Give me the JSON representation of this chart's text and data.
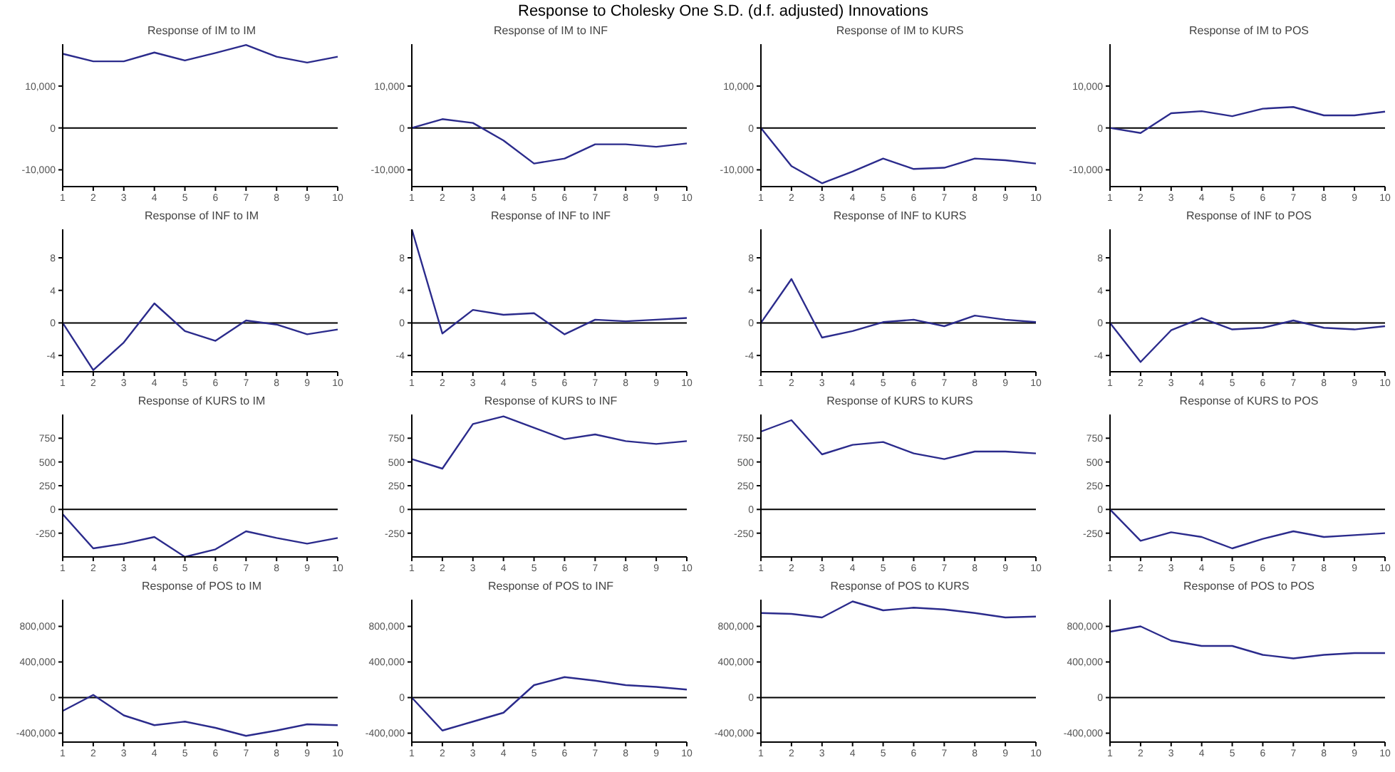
{
  "chart_data": [
    {
      "type": "line",
      "title": "Response of IM to IM",
      "annotations": [
        "Response to Cholesky One S.D. (d.f. adjusted) Innovations"
      ],
      "categories": [
        "1",
        "2",
        "3",
        "4",
        "5",
        "6",
        "7",
        "8",
        "9",
        "10"
      ],
      "values": [
        17700,
        15900,
        15900,
        18000,
        16100,
        17900,
        19800,
        17000,
        15600,
        17000
      ],
      "color": "#2b2b8c",
      "ylim": [
        -14000,
        20000
      ],
      "yticks": [
        {
          "value": -10000,
          "label": "-10,000"
        },
        0,
        {
          "value": 10000,
          "label": "10,000"
        }
      ],
      "ref_lines": [
        {
          "axis": "y",
          "value": 0,
          "color": "#000000"
        }
      ]
    },
    {
      "type": "line",
      "title": "Response of IM to INF",
      "categories": [
        "1",
        "2",
        "3",
        "4",
        "5",
        "6",
        "7",
        "8",
        "9",
        "10"
      ],
      "values": [
        0,
        2100,
        1200,
        -3000,
        -8500,
        -7300,
        -3900,
        -3900,
        -4500,
        -3700
      ],
      "color": "#2b2b8c",
      "ylim": [
        -14000,
        20000
      ],
      "yticks": [
        {
          "value": -10000,
          "label": "-10,000"
        },
        0,
        {
          "value": 10000,
          "label": "10,000"
        }
      ],
      "ref_lines": [
        {
          "axis": "y",
          "value": 0,
          "color": "#000000"
        }
      ]
    },
    {
      "type": "line",
      "title": "Response of IM to KURS",
      "categories": [
        "1",
        "2",
        "3",
        "4",
        "5",
        "6",
        "7",
        "8",
        "9",
        "10"
      ],
      "values": [
        0,
        -9100,
        -13200,
        -10400,
        -7300,
        -9800,
        -9500,
        -7300,
        -7700,
        -8500
      ],
      "color": "#2b2b8c",
      "ylim": [
        -14000,
        20000
      ],
      "yticks": [
        {
          "value": -10000,
          "label": "-10,000"
        },
        0,
        {
          "value": 10000,
          "label": "10,000"
        }
      ],
      "ref_lines": [
        {
          "axis": "y",
          "value": 0,
          "color": "#000000"
        }
      ]
    },
    {
      "type": "line",
      "title": "Response of IM to POS",
      "categories": [
        "1",
        "2",
        "3",
        "4",
        "5",
        "6",
        "7",
        "8",
        "9",
        "10"
      ],
      "values": [
        0,
        -1200,
        3500,
        4000,
        2800,
        4600,
        5000,
        3000,
        3000,
        3900
      ],
      "color": "#2b2b8c",
      "ylim": [
        -14000,
        20000
      ],
      "yticks": [
        {
          "value": -10000,
          "label": "-10,000"
        },
        0,
        {
          "value": 10000,
          "label": "10,000"
        }
      ],
      "ref_lines": [
        {
          "axis": "y",
          "value": 0,
          "color": "#000000"
        }
      ]
    },
    {
      "type": "line",
      "title": "Response of INF to IM",
      "categories": [
        "1",
        "2",
        "3",
        "4",
        "5",
        "6",
        "7",
        "8",
        "9",
        "10"
      ],
      "values": [
        0,
        -5.8,
        -2.4,
        2.4,
        -1,
        -2.2,
        0.3,
        -0.2,
        -1.4,
        -0.8
      ],
      "color": "#2b2b8c",
      "ylim": [
        -6,
        11.5
      ],
      "yticks": [
        -4,
        0,
        4,
        8
      ],
      "ref_lines": [
        {
          "axis": "y",
          "value": 0,
          "color": "#000000"
        }
      ]
    },
    {
      "type": "line",
      "title": "Response of INF to INF",
      "categories": [
        "1",
        "2",
        "3",
        "4",
        "5",
        "6",
        "7",
        "8",
        "9",
        "10"
      ],
      "values": [
        11.5,
        -1.3,
        1.6,
        1,
        1.2,
        -1.4,
        0.4,
        0.2,
        0.4,
        0.6
      ],
      "color": "#2b2b8c",
      "ylim": [
        -6,
        11.5
      ],
      "yticks": [
        -4,
        0,
        4,
        8
      ],
      "ref_lines": [
        {
          "axis": "y",
          "value": 0,
          "color": "#000000"
        }
      ]
    },
    {
      "type": "line",
      "title": "Response of INF to KURS",
      "categories": [
        "1",
        "2",
        "3",
        "4",
        "5",
        "6",
        "7",
        "8",
        "9",
        "10"
      ],
      "values": [
        0,
        5.4,
        -1.8,
        -1,
        0.1,
        0.4,
        -0.4,
        0.9,
        0.4,
        0.1
      ],
      "color": "#2b2b8c",
      "ylim": [
        -6,
        11.5
      ],
      "yticks": [
        -4,
        0,
        4,
        8
      ],
      "ref_lines": [
        {
          "axis": "y",
          "value": 0,
          "color": "#000000"
        }
      ]
    },
    {
      "type": "line",
      "title": "Response of INF to POS",
      "categories": [
        "1",
        "2",
        "3",
        "4",
        "5",
        "6",
        "7",
        "8",
        "9",
        "10"
      ],
      "values": [
        0,
        -4.8,
        -0.9,
        0.6,
        -0.8,
        -0.6,
        0.3,
        -0.6,
        -0.8,
        -0.4
      ],
      "color": "#2b2b8c",
      "ylim": [
        -6,
        11.5
      ],
      "yticks": [
        -4,
        0,
        4,
        8
      ],
      "ref_lines": [
        {
          "axis": "y",
          "value": 0,
          "color": "#000000"
        }
      ]
    },
    {
      "type": "line",
      "title": "Response of KURS to IM",
      "categories": [
        "1",
        "2",
        "3",
        "4",
        "5",
        "6",
        "7",
        "8",
        "9",
        "10"
      ],
      "values": [
        -50,
        -410,
        -360,
        -290,
        -500,
        -420,
        -230,
        -300,
        -360,
        -300
      ],
      "color": "#2b2b8c",
      "ylim": [
        -500,
        1000
      ],
      "yticks": [
        -250,
        0,
        250,
        500,
        750
      ],
      "ref_lines": [
        {
          "axis": "y",
          "value": 0,
          "color": "#000000"
        }
      ]
    },
    {
      "type": "line",
      "title": "Response of KURS to INF",
      "categories": [
        "1",
        "2",
        "3",
        "4",
        "5",
        "6",
        "7",
        "8",
        "9",
        "10"
      ],
      "values": [
        530,
        430,
        900,
        980,
        860,
        740,
        790,
        720,
        690,
        720
      ],
      "color": "#2b2b8c",
      "ylim": [
        -500,
        1000
      ],
      "yticks": [
        -250,
        0,
        250,
        500,
        750
      ],
      "ref_lines": [
        {
          "axis": "y",
          "value": 0,
          "color": "#000000"
        }
      ]
    },
    {
      "type": "line",
      "title": "Response of KURS to KURS",
      "categories": [
        "1",
        "2",
        "3",
        "4",
        "5",
        "6",
        "7",
        "8",
        "9",
        "10"
      ],
      "values": [
        820,
        940,
        580,
        680,
        710,
        590,
        530,
        610,
        610,
        590
      ],
      "color": "#2b2b8c",
      "ylim": [
        -500,
        1000
      ],
      "yticks": [
        -250,
        0,
        250,
        500,
        750
      ],
      "ref_lines": [
        {
          "axis": "y",
          "value": 0,
          "color": "#000000"
        }
      ]
    },
    {
      "type": "line",
      "title": "Response of KURS to POS",
      "categories": [
        "1",
        "2",
        "3",
        "4",
        "5",
        "6",
        "7",
        "8",
        "9",
        "10"
      ],
      "values": [
        0,
        -330,
        -240,
        -290,
        -410,
        -310,
        -230,
        -290,
        -270,
        -250
      ],
      "color": "#2b2b8c",
      "ylim": [
        -500,
        1000
      ],
      "yticks": [
        -250,
        0,
        250,
        500,
        750
      ],
      "ref_lines": [
        {
          "axis": "y",
          "value": 0,
          "color": "#000000"
        }
      ]
    },
    {
      "type": "line",
      "title": "Response of POS to IM",
      "categories": [
        "1",
        "2",
        "3",
        "4",
        "5",
        "6",
        "7",
        "8",
        "9",
        "10"
      ],
      "values": [
        -150000,
        30000,
        -200000,
        -310000,
        -270000,
        -340000,
        -430000,
        -370000,
        -300000,
        -310000
      ],
      "color": "#2b2b8c",
      "ylim": [
        -500000,
        1100000
      ],
      "yticks": [
        {
          "value": -400000,
          "label": "-400,000"
        },
        0,
        {
          "value": 400000,
          "label": "400,000"
        },
        {
          "value": 800000,
          "label": "800,000"
        }
      ],
      "ref_lines": [
        {
          "axis": "y",
          "value": 0,
          "color": "#000000"
        }
      ]
    },
    {
      "type": "line",
      "title": "Response of POS to INF",
      "categories": [
        "1",
        "2",
        "3",
        "4",
        "5",
        "6",
        "7",
        "8",
        "9",
        "10"
      ],
      "values": [
        0,
        -370000,
        -270000,
        -170000,
        140000,
        230000,
        190000,
        140000,
        120000,
        90000
      ],
      "color": "#2b2b8c",
      "ylim": [
        -500000,
        1100000
      ],
      "yticks": [
        {
          "value": -400000,
          "label": "-400,000"
        },
        0,
        {
          "value": 400000,
          "label": "400,000"
        },
        {
          "value": 800000,
          "label": "800,000"
        }
      ],
      "ref_lines": [
        {
          "axis": "y",
          "value": 0,
          "color": "#000000"
        }
      ]
    },
    {
      "type": "line",
      "title": "Response of POS to KURS",
      "categories": [
        "1",
        "2",
        "3",
        "4",
        "5",
        "6",
        "7",
        "8",
        "9",
        "10"
      ],
      "values": [
        950000,
        940000,
        900000,
        1080000,
        980000,
        1010000,
        990000,
        950000,
        900000,
        910000
      ],
      "color": "#2b2b8c",
      "ylim": [
        -500000,
        1100000
      ],
      "yticks": [
        {
          "value": -400000,
          "label": "-400,000"
        },
        0,
        {
          "value": 400000,
          "label": "400,000"
        },
        {
          "value": 800000,
          "label": "800,000"
        }
      ],
      "ref_lines": [
        {
          "axis": "y",
          "value": 0,
          "color": "#000000"
        }
      ]
    },
    {
      "type": "line",
      "title": "Response of POS to POS",
      "categories": [
        "1",
        "2",
        "3",
        "4",
        "5",
        "6",
        "7",
        "8",
        "9",
        "10"
      ],
      "values": [
        740000,
        800000,
        640000,
        580000,
        580000,
        480000,
        440000,
        480000,
        500000,
        500000
      ],
      "color": "#2b2b8c",
      "ylim": [
        -500000,
        1100000
      ],
      "yticks": [
        {
          "value": -400000,
          "label": "-400,000"
        },
        0,
        {
          "value": 400000,
          "label": "400,000"
        },
        {
          "value": 800000,
          "label": "800,000"
        }
      ],
      "ref_lines": [
        {
          "axis": "y",
          "value": 0,
          "color": "#000000"
        }
      ]
    }
  ]
}
